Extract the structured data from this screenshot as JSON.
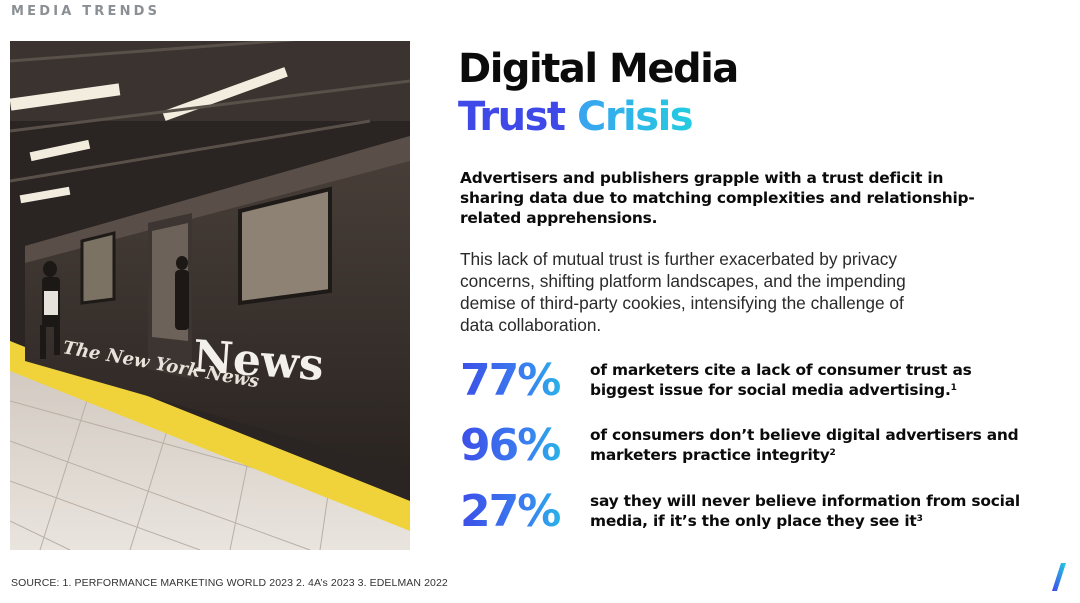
{
  "section_label": "MEDIA TRENDS",
  "title": {
    "line1": "Digital Media",
    "line2_word1": "Trust",
    "line2_word2": "Crisis"
  },
  "lead": "Advertisers and publishers grapple with a trust deficit in sharing data due to matching complexities and relationship-related apprehensions.",
  "body": "This lack of mutual trust is further exacerbated by privacy concerns, shifting platform landscapes, and the impending demise of third-party cookies, intensifying the challenge of data collaboration.",
  "photo": {
    "train_lettering": "News",
    "train_logo": "The New York News"
  },
  "stats": [
    {
      "value": "77%",
      "text": "of marketers cite a lack of consumer trust as biggest issue for social media advertising.",
      "ref": "1"
    },
    {
      "value": "96%",
      "text": "of consumers don’t believe digital advertisers and marketers practice integrity",
      "ref": "2"
    },
    {
      "value": "27%",
      "text": "say they will never believe information from social media, if it’s the only place they see it",
      "ref": "3"
    }
  ],
  "source": "SOURCE: 1. PERFORMANCE MARKETING WORLD 2023  2. 4A’s 2023   3. EDELMAN 2022",
  "colors": {
    "accent_blue": "#3f49e8",
    "accent_cyan": "#22cce0",
    "label_gray": "#8a8f94"
  },
  "icons": {
    "brand_mark": "slash-logo-icon"
  }
}
